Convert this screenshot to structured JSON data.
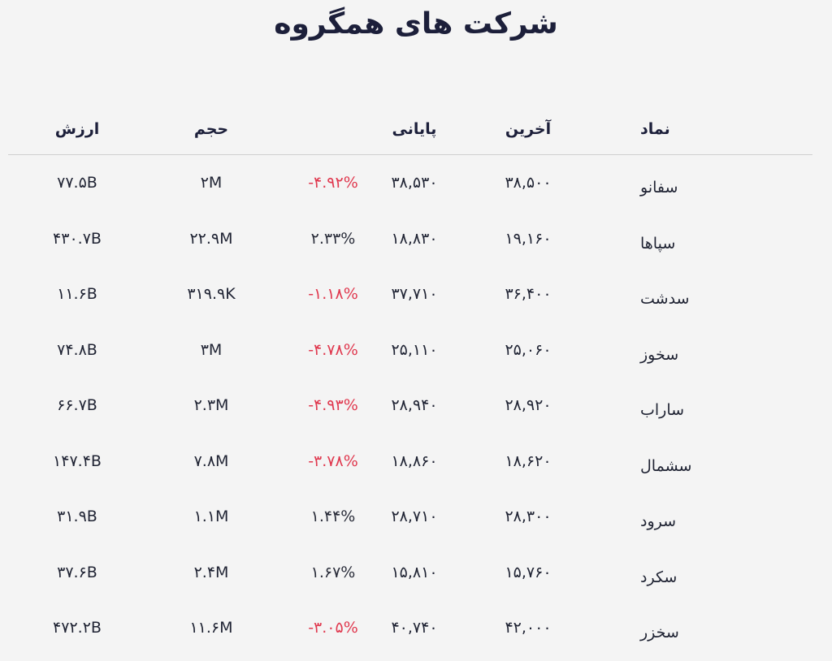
{
  "title": "شرکت های همگروه",
  "columns": {
    "symbol": "نماد",
    "last": "آخرین",
    "close": "پایانی",
    "change": "",
    "volume": "حجم",
    "value": "ارزش"
  },
  "rows": [
    {
      "symbol": "سفانو",
      "last": "۳۸,۵۰۰",
      "close": "۳۸,۵۳۰",
      "change": "-۴.۹۲%",
      "change_sign": "neg",
      "volume": "۲M",
      "value": "۷۷.۵B"
    },
    {
      "symbol": "سپاها",
      "last": "۱۹,۱۶۰",
      "close": "۱۸,۸۳۰",
      "change": "۲.۳۳%",
      "change_sign": "pos",
      "volume": "۲۲.۹M",
      "value": "۴۳۰.۷B"
    },
    {
      "symbol": "سدشت",
      "last": "۳۶,۴۰۰",
      "close": "۳۷,۷۱۰",
      "change": "-۱.۱۸%",
      "change_sign": "neg",
      "volume": "۳۱۹.۹K",
      "value": "۱۱.۶B"
    },
    {
      "symbol": "سخوز",
      "last": "۲۵,۰۶۰",
      "close": "۲۵,۱۱۰",
      "change": "-۴.۷۸%",
      "change_sign": "neg",
      "volume": "۳M",
      "value": "۷۴.۸B"
    },
    {
      "symbol": "ساراب",
      "last": "۲۸,۹۲۰",
      "close": "۲۸,۹۴۰",
      "change": "-۴.۹۳%",
      "change_sign": "neg",
      "volume": "۲.۳M",
      "value": "۶۶.۷B"
    },
    {
      "symbol": "سشمال",
      "last": "۱۸,۶۲۰",
      "close": "۱۸,۸۶۰",
      "change": "-۳.۷۸%",
      "change_sign": "neg",
      "volume": "۷.۸M",
      "value": "۱۴۷.۴B"
    },
    {
      "symbol": "سرود",
      "last": "۲۸,۳۰۰",
      "close": "۲۸,۷۱۰",
      "change": "۱.۴۴%",
      "change_sign": "pos",
      "volume": "۱.۱M",
      "value": "۳۱.۹B"
    },
    {
      "symbol": "سکرد",
      "last": "۱۵,۷۶۰",
      "close": "۱۵,۸۱۰",
      "change": "۱.۶۷%",
      "change_sign": "pos",
      "volume": "۲.۴M",
      "value": "۳۷.۶B"
    },
    {
      "symbol": "سخزر",
      "last": "۴۲,۰۰۰",
      "close": "۴۰,۷۴۰",
      "change": "-۳.۰۵%",
      "change_sign": "neg",
      "volume": "۱۱.۶M",
      "value": "۴۷۲.۲B"
    }
  ],
  "colors": {
    "negative": "#e0394f",
    "positive": "#2a2d3a",
    "background": "#f4f4f4",
    "title": "#1c1f3a"
  }
}
